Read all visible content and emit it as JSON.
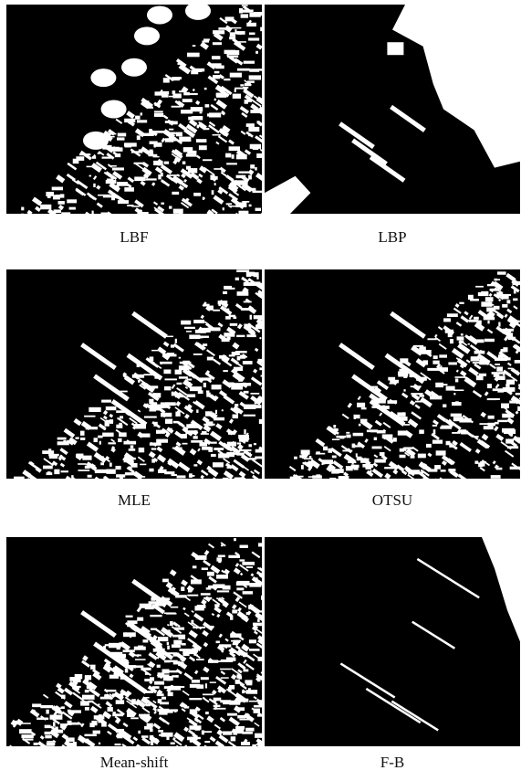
{
  "panels": [
    {
      "label": "LBF"
    },
    {
      "label": "LBP"
    },
    {
      "label": "MLE"
    },
    {
      "label": "OTSU"
    },
    {
      "label": "Mean-shift"
    },
    {
      "label": "F-B"
    }
  ]
}
